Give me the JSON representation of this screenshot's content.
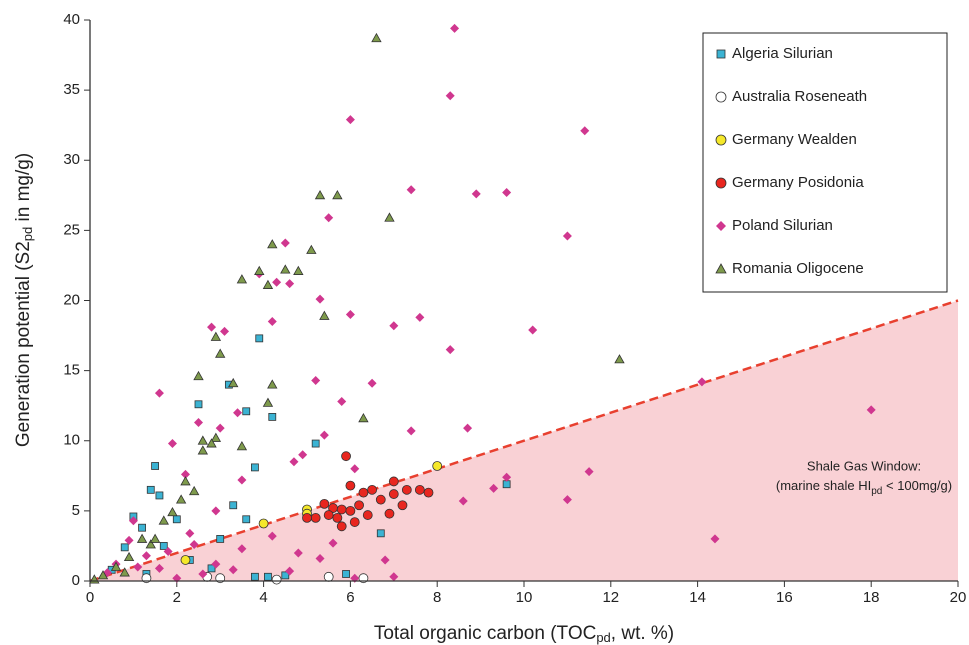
{
  "chart_data": {
    "type": "scatter",
    "xlabel": [
      "Total organic carbon (TOC",
      "pd",
      ",  wt. %)"
    ],
    "ylabel": [
      "Generation potential (S2",
      "pd",
      " in mg/g)"
    ],
    "annotation": {
      "line1": "Shale Gas Window:",
      "line2": [
        "(marine shale HI",
        "pd",
        " < 100mg/g)"
      ]
    },
    "xlim": [
      0,
      20
    ],
    "ylim": [
      0,
      40
    ],
    "xticks": [
      0,
      2,
      4,
      6,
      8,
      10,
      12,
      14,
      16,
      18,
      20
    ],
    "yticks": [
      0,
      5,
      10,
      15,
      20,
      25,
      30,
      35,
      40
    ],
    "legend": "upper right",
    "window": {
      "x": [
        0,
        20
      ],
      "y": [
        0,
        20
      ],
      "color": "#e8402f",
      "fill": "#f9d1d5"
    },
    "series": [
      {
        "name": "Algeria Silurian",
        "marker": "square",
        "color": "#3bb3d3",
        "x": [
          3.9,
          2.5,
          3.2,
          3.6,
          4.2,
          3.8,
          5.2,
          1.5,
          1.4,
          1.0,
          2.0,
          1.2,
          0.8,
          3.0,
          3.6,
          9.6,
          6.7,
          4.1,
          4.5,
          3.8,
          5.9,
          1.7,
          2.3,
          0.5,
          1.3,
          2.8,
          3.3,
          1.6
        ],
        "values": [
          17.3,
          12.6,
          14.0,
          12.1,
          11.7,
          8.1,
          9.8,
          8.2,
          6.5,
          4.6,
          4.4,
          3.8,
          2.4,
          3.0,
          4.4,
          6.9,
          3.4,
          0.3,
          0.4,
          0.3,
          0.5,
          2.5,
          1.5,
          0.8,
          0.5,
          0.9,
          5.4,
          6.1
        ]
      },
      {
        "name": "Australia Roseneath",
        "marker": "circle",
        "color": "#ffffff",
        "x": [
          5.5,
          6.3,
          3.0,
          4.3,
          2.7,
          1.3
        ],
        "values": [
          0.3,
          0.2,
          0.2,
          0.1,
          0.3,
          0.2
        ]
      },
      {
        "name": "Germany Wealden",
        "marker": "circle",
        "color": "#f5e82a",
        "x": [
          4.0,
          5.0,
          5.0,
          8.0,
          2.2
        ],
        "values": [
          4.1,
          5.1,
          4.8,
          8.2,
          1.5
        ]
      },
      {
        "name": "Germany Posidonia",
        "marker": "circle",
        "color": "#e8261f",
        "x": [
          5.9,
          6.0,
          6.3,
          6.5,
          7.0,
          7.3,
          7.6,
          7.8,
          5.4,
          5.6,
          5.8,
          6.0,
          6.2,
          5.2,
          5.5,
          6.1,
          5.8,
          6.7,
          6.9,
          7.2,
          5.0,
          6.4,
          7.0,
          5.7
        ],
        "values": [
          8.9,
          6.8,
          6.3,
          6.5,
          7.1,
          6.5,
          6.5,
          6.3,
          5.5,
          5.2,
          5.1,
          5.0,
          5.4,
          4.5,
          4.7,
          4.2,
          3.9,
          5.8,
          4.8,
          5.4,
          4.5,
          4.7,
          6.2,
          4.5
        ]
      },
      {
        "name": "Poland Silurian",
        "marker": "diamond",
        "color": "#d0378f",
        "x": [
          8.4,
          8.3,
          6.0,
          11.4,
          7.4,
          8.9,
          9.6,
          5.5,
          11.0,
          4.5,
          6.0,
          5.3,
          3.1,
          7.6,
          7.0,
          10.2,
          8.3,
          4.2,
          2.8,
          1.6,
          2.5,
          5.2,
          6.5,
          14.1,
          18.0,
          8.7,
          7.4,
          5.8,
          3.0,
          1.9,
          11.0,
          11.5,
          9.6,
          9.3,
          8.6,
          14.4,
          3.5,
          4.7,
          2.2,
          1.0,
          0.9,
          1.3,
          1.8,
          2.4,
          2.9,
          3.5,
          4.2,
          4.8,
          5.3,
          5.6,
          0.6,
          0.4,
          1.6,
          2.6,
          3.3,
          4.6,
          6.1,
          7.0,
          6.8,
          2.0,
          1.1,
          3.9,
          4.3,
          4.6,
          3.4,
          4.9,
          5.4,
          6.1,
          2.9,
          2.3
        ],
        "values": [
          39.4,
          34.6,
          32.9,
          32.1,
          27.9,
          27.6,
          27.7,
          25.9,
          24.6,
          24.1,
          19.0,
          20.1,
          17.8,
          18.8,
          18.2,
          17.9,
          16.5,
          18.5,
          18.1,
          13.4,
          11.3,
          14.3,
          14.1,
          14.2,
          12.2,
          10.9,
          10.7,
          12.8,
          10.9,
          9.8,
          5.8,
          7.8,
          7.4,
          6.6,
          5.7,
          3.0,
          7.2,
          8.5,
          7.6,
          4.3,
          2.9,
          1.8,
          2.1,
          2.6,
          1.2,
          2.3,
          3.2,
          2.0,
          1.6,
          2.7,
          1.2,
          0.6,
          0.9,
          0.5,
          0.8,
          0.7,
          0.2,
          0.3,
          1.5,
          0.2,
          1.0,
          21.9,
          21.3,
          21.2,
          12.0,
          9.0,
          10.4,
          8.0,
          5.0,
          3.4
        ]
      },
      {
        "name": "Romania Oligocene",
        "marker": "triangle",
        "color": "#7e9a4c",
        "x": [
          6.6,
          5.3,
          5.7,
          6.9,
          5.1,
          4.2,
          3.9,
          4.5,
          4.8,
          3.5,
          4.1,
          5.4,
          2.9,
          3.0,
          2.5,
          3.3,
          4.2,
          4.1,
          6.3,
          12.2,
          2.6,
          2.9,
          2.8,
          2.6,
          3.5,
          2.2,
          2.4,
          2.1,
          1.9,
          1.7,
          1.2,
          0.9,
          0.6,
          0.3,
          0.1,
          1.4,
          1.5,
          0.8
        ],
        "values": [
          38.7,
          27.5,
          27.5,
          25.9,
          23.6,
          24.0,
          22.1,
          22.2,
          22.1,
          21.5,
          21.1,
          18.9,
          17.4,
          16.2,
          14.6,
          14.1,
          14.0,
          12.7,
          11.6,
          15.8,
          10.0,
          10.2,
          9.8,
          9.3,
          9.6,
          7.1,
          6.4,
          5.8,
          4.9,
          4.3,
          3.0,
          1.7,
          1.0,
          0.4,
          0.1,
          2.6,
          3.0,
          0.6
        ]
      }
    ]
  }
}
